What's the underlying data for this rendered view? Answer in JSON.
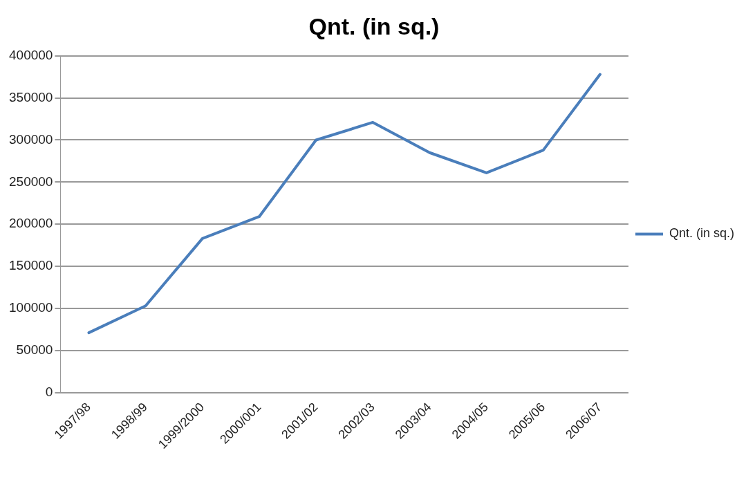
{
  "chart_data": {
    "type": "line",
    "title": "Qnt. (in sq.)",
    "categories": [
      "1997/98",
      "1998/99",
      "1999/2000",
      "2000/001",
      "2001/02",
      "2002/03",
      "2003/04",
      "2004/05",
      "2005/06",
      "2006/07"
    ],
    "series": [
      {
        "name": "Qnt. (in sq.)",
        "color": "#4a7ebb",
        "values": [
          71000,
          103000,
          183000,
          209000,
          300000,
          321000,
          285000,
          261000,
          288000,
          378000
        ]
      }
    ],
    "ylim": [
      0,
      400000
    ],
    "yticks": [
      0,
      50000,
      100000,
      150000,
      200000,
      250000,
      300000,
      350000,
      400000
    ],
    "grid": "y",
    "legend": "right",
    "marker": "none",
    "line_style": "solid"
  }
}
